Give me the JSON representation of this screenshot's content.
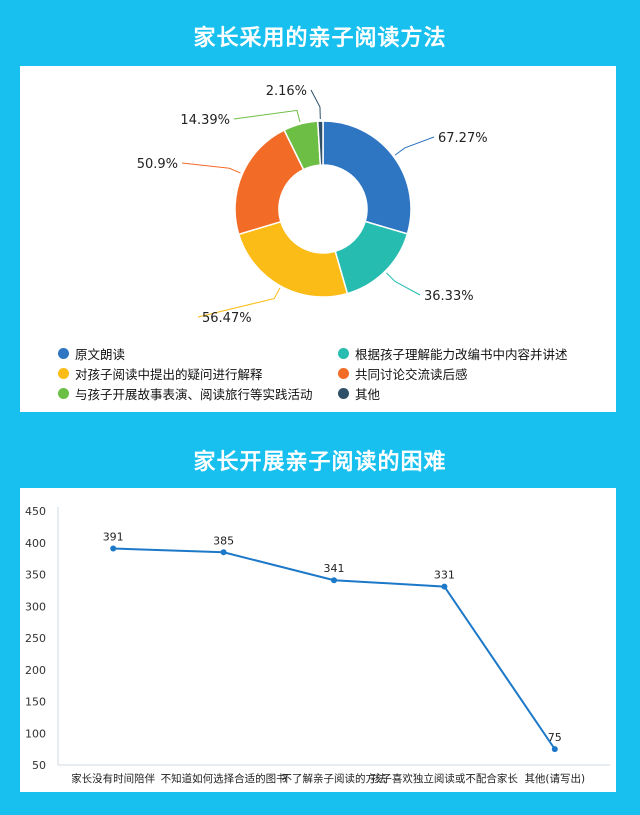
{
  "titles": {
    "pie": "家长采用的亲子阅读方法",
    "line": "家长开展亲子阅读的困难"
  },
  "chart_data": [
    {
      "type": "pie",
      "donut": true,
      "legend_position": "bottom",
      "series": [
        {
          "name": "原文朗读",
          "value": 67.27,
          "label": "67.27%",
          "color": "#2e75c2"
        },
        {
          "name": "根据孩子理解能力改编书中内容并讲述",
          "value": 36.33,
          "label": "36.33%",
          "color": "#26bcb0"
        },
        {
          "name": "对孩子阅读中提出的疑问进行解释",
          "value": 56.47,
          "label": "56.47%",
          "color": "#fbbc18"
        },
        {
          "name": "共同讨论交流读后感",
          "value": 50.9,
          "label": "50.9%",
          "color": "#f36c27"
        },
        {
          "name": "与孩子开展故事表演、阅读旅行等实践活动",
          "value": 14.39,
          "label": "14.39%",
          "color": "#6dbe45"
        },
        {
          "name": "其他",
          "value": 2.16,
          "label": "2.16%",
          "color": "#2e5068"
        }
      ]
    },
    {
      "type": "line",
      "categories": [
        "家长没有时间陪伴",
        "不知道如何选择合适的图书",
        "不了解亲子阅读的方法",
        "孩子喜欢独立阅读或不配合家长",
        "其他(请写出)"
      ],
      "values": [
        391,
        385,
        341,
        331,
        75
      ],
      "value_labels": [
        "391",
        "385",
        "341",
        "331",
        "75"
      ],
      "ylim": [
        50,
        450
      ],
      "yticks": [
        "50",
        "100",
        "150",
        "200",
        "250",
        "300",
        "350",
        "400",
        "450"
      ],
      "line_color": "#1c78c8",
      "grid": false
    }
  ]
}
